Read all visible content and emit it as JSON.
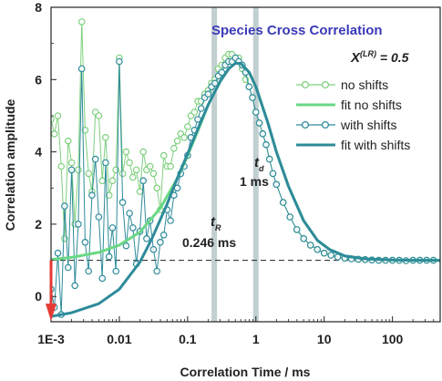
{
  "chart_data": {
    "type": "line",
    "title": "Species Cross Correlation",
    "xlabel": "Correlation Time / ms",
    "ylabel": "Correlation amplitude",
    "x_scale": "log",
    "xlim": [
      0.001,
      500
    ],
    "ylim": [
      -0.7,
      8
    ],
    "x_ticks": [
      0.001,
      0.01,
      0.1,
      1,
      10,
      100
    ],
    "x_tick_labels": [
      "1E-3",
      "0.01",
      "0.1",
      "1",
      "10",
      "100"
    ],
    "y_ticks": [
      0,
      2,
      4,
      6,
      8
    ],
    "y_tick_labels": [
      "0",
      "2",
      "4",
      "6",
      "8"
    ],
    "reference_line": {
      "y": 1,
      "style": "dashed"
    },
    "vertical_bands": [
      0.246,
      1
    ],
    "annotations": {
      "x_lr": {
        "symbol": "X",
        "superscript": "(LR)",
        "value": " = 0.5"
      },
      "t_d": {
        "symbol": "t",
        "subscript": "d",
        "value": "1 ms"
      },
      "t_r": {
        "symbol": "t",
        "subscript": "R",
        "value": "0.246 ms"
      }
    },
    "legend_position": "right",
    "colors": {
      "no_shifts": "#7fd07f",
      "fit_no_shifts": "#6ad884",
      "with_shifts": "#2e8b9a",
      "fit_with_shifts": "#2e8b9a",
      "band": "#b7c7c9",
      "arrow": "#e53935"
    },
    "series": [
      {
        "name": "no shifts",
        "kind": "scatter-line",
        "x": [
          0.001,
          0.00112,
          0.00126,
          0.00141,
          0.00158,
          0.00178,
          0.002,
          0.00224,
          0.00251,
          0.00282,
          0.00316,
          0.00355,
          0.00398,
          0.00447,
          0.00501,
          0.00562,
          0.00631,
          0.00708,
          0.00794,
          0.00891,
          0.01,
          0.0112,
          0.0126,
          0.0141,
          0.0158,
          0.0178,
          0.02,
          0.0224,
          0.0251,
          0.0282,
          0.0316,
          0.0355,
          0.0398,
          0.0447,
          0.0501,
          0.0562,
          0.0631,
          0.0708,
          0.0794,
          0.0891,
          0.1,
          0.112,
          0.126,
          0.141,
          0.158,
          0.178,
          0.2,
          0.224,
          0.251,
          0.282,
          0.316,
          0.355,
          0.398,
          0.447,
          0.501,
          0.562,
          0.631,
          0.708,
          0.794,
          0.891,
          1,
          1.12,
          1.26,
          1.41,
          1.58,
          1.78,
          2,
          2.51,
          3.16,
          3.98,
          5.01,
          6.31,
          7.94,
          10,
          12.6,
          15.8,
          20,
          25.1,
          31.6,
          39.8,
          50.1,
          63.1,
          79.4,
          100,
          126,
          158,
          200,
          251,
          316,
          398
        ],
        "y": [
          4.9,
          4.5,
          5.0,
          3.6,
          1.6,
          4.3,
          3.7,
          2.0,
          3.5,
          7.6,
          4.6,
          3.4,
          2.9,
          5.1,
          5.0,
          3.2,
          4.4,
          2.8,
          3.2,
          3.5,
          6.6,
          3.4,
          4.0,
          3.7,
          3.3,
          3.5,
          2.9,
          4.0,
          3.5,
          3.6,
          3.4,
          3.0,
          2.4,
          3.9,
          3.6,
          3.6,
          4.1,
          4.3,
          4.5,
          4.4,
          4.7,
          5.0,
          5.1,
          5.4,
          5.4,
          5.6,
          5.7,
          5.9,
          6.0,
          6.3,
          6.4,
          6.6,
          6.7,
          6.7,
          6.6,
          6.6,
          6.3,
          6.0,
          5.8,
          5.5,
          5.1,
          4.8,
          4.5,
          4.2,
          3.8,
          3.4,
          3.1,
          2.6,
          2.2,
          1.85,
          1.6,
          1.42,
          1.3,
          1.2,
          1.14,
          1.09,
          1.06,
          1.04,
          1.03,
          1.02,
          1.01,
          1.0,
          1.0,
          1.0,
          1.0,
          0.99,
          1.0,
          1.0,
          1.0,
          1.0
        ]
      },
      {
        "name": "fit no shifts",
        "kind": "curve",
        "x": [
          0.001,
          0.002,
          0.005,
          0.01,
          0.02,
          0.04,
          0.07,
          0.1,
          0.15,
          0.2,
          0.3,
          0.4,
          0.5,
          0.6,
          0.8,
          1,
          1.5,
          2,
          3,
          5,
          8,
          12,
          20,
          40,
          100,
          200,
          500
        ],
        "y": [
          1.02,
          1.08,
          1.22,
          1.42,
          1.78,
          2.45,
          3.25,
          3.9,
          4.7,
          5.3,
          5.95,
          6.3,
          6.45,
          6.45,
          6.2,
          5.8,
          4.8,
          4.0,
          3.05,
          2.1,
          1.55,
          1.3,
          1.12,
          1.04,
          1.01,
          1.0,
          1.0
        ]
      },
      {
        "name": "with shifts",
        "kind": "scatter-line",
        "x": [
          0.001,
          0.00112,
          0.00126,
          0.00141,
          0.00158,
          0.00178,
          0.002,
          0.00224,
          0.00251,
          0.00282,
          0.00316,
          0.00355,
          0.00398,
          0.00447,
          0.00501,
          0.00562,
          0.00631,
          0.00708,
          0.00794,
          0.00891,
          0.01,
          0.0112,
          0.0126,
          0.0141,
          0.0158,
          0.0178,
          0.02,
          0.0224,
          0.0251,
          0.0282,
          0.0316,
          0.0355,
          0.0398,
          0.0447,
          0.0501,
          0.0562,
          0.0631,
          0.0708,
          0.0794,
          0.0891,
          0.1,
          0.112,
          0.126,
          0.141,
          0.158,
          0.178,
          0.2,
          0.224,
          0.251,
          0.282,
          0.316,
          0.355,
          0.398,
          0.447,
          0.501,
          0.562,
          0.631,
          0.708,
          0.794,
          0.891,
          1,
          1.12,
          1.26,
          1.41,
          1.58,
          1.78,
          2,
          2.51,
          3.16,
          3.98,
          5.01,
          6.31,
          7.94,
          10,
          12.6,
          15.8,
          20,
          25.1,
          31.6,
          39.8,
          50.1,
          63.1,
          79.4,
          100,
          126,
          158,
          200,
          251,
          316,
          398
        ],
        "y": [
          0.2,
          -0.3,
          1.2,
          -0.5,
          2.5,
          0.8,
          3.5,
          0.3,
          2.0,
          6.3,
          1.5,
          0.7,
          2.8,
          3.8,
          2.2,
          0.5,
          3.7,
          1.1,
          1.9,
          0.7,
          6.5,
          2.6,
          1.4,
          2.3,
          1.9,
          0.9,
          1.8,
          3.2,
          1.6,
          2.1,
          1.3,
          0.7,
          1.5,
          1.7,
          2.4,
          2.1,
          2.8,
          3.0,
          3.4,
          3.6,
          3.9,
          4.4,
          4.6,
          4.9,
          5.2,
          5.5,
          5.6,
          5.8,
          5.9,
          6.1,
          6.2,
          6.4,
          6.5,
          6.5,
          6.6,
          6.5,
          6.4,
          6.2,
          5.8,
          5.5,
          5.1,
          4.8,
          4.5,
          4.2,
          3.8,
          3.4,
          3.1,
          2.6,
          2.2,
          1.85,
          1.6,
          1.42,
          1.3,
          1.2,
          1.14,
          1.09,
          1.06,
          1.04,
          1.03,
          1.02,
          1.01,
          1.0,
          1.0,
          1.0,
          1.0,
          0.99,
          1.0,
          1.0,
          1.0,
          1.0
        ]
      },
      {
        "name": "fit with shifts",
        "kind": "curve",
        "x": [
          0.001,
          0.002,
          0.005,
          0.01,
          0.02,
          0.03,
          0.05,
          0.07,
          0.1,
          0.15,
          0.2,
          0.3,
          0.4,
          0.5,
          0.6,
          0.8,
          1,
          1.5,
          2,
          3,
          5,
          8,
          12,
          20,
          40,
          100,
          200,
          500
        ],
        "y": [
          -0.55,
          -0.45,
          -0.2,
          0.2,
          0.95,
          1.6,
          2.55,
          3.25,
          3.95,
          4.75,
          5.3,
          5.95,
          6.3,
          6.45,
          6.45,
          6.2,
          5.8,
          4.8,
          4.0,
          3.05,
          2.1,
          1.55,
          1.3,
          1.12,
          1.04,
          1.01,
          1.0,
          1.0
        ]
      }
    ]
  }
}
